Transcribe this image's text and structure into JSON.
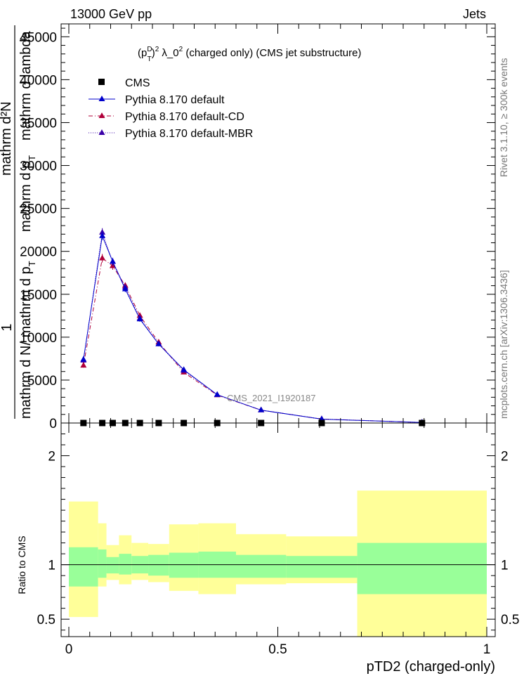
{
  "header": {
    "left": "13000 GeV pp",
    "right": "Jets"
  },
  "side_labels": {
    "rivet": "Rivet 3.1.10, ≥ 300k events",
    "mcplots": "mcplots.cern.ch [arXiv:1306.3436]"
  },
  "colors": {
    "cms": "#000000",
    "pythia_default": "#0000cc",
    "pythia_cd": "#b0003a",
    "pythia_mbr": "#3a00a8",
    "band_outer": "#ffff99",
    "band_inner": "#99ff99"
  },
  "chart_data": [
    {
      "type": "line",
      "title": "(p_T^D)^2 λ_0^2 (charged only) (CMS jet substructure)",
      "title_parts": {
        "base": "(p",
        "sup": "D",
        "sub": "T",
        "close": ")",
        "exp": "2",
        "lambda": " λ_0",
        "lambda_exp": "2",
        "rest": " (charged only) (CMS jet substructure)"
      },
      "ylabel": "1 / mathrm d N / mathrm d p_T mathrm d^2N / mathrm d p_T mathrm d lambda",
      "ylabel_lines": {
        "one": "1",
        "denominator": "mathrm d N/ mathrm d p",
        "denominator_sub": "T",
        "numerator": "mathrm d²N",
        "numerator2": "mathrm d p",
        "numerator2_sub": "T",
        "numerator3": "mathrm d lambda"
      },
      "xlim": [
        0,
        1
      ],
      "ylim": [
        0,
        46500
      ],
      "y_ticks": [
        0,
        5000,
        10000,
        15000,
        20000,
        25000,
        30000,
        35000,
        40000,
        45000
      ],
      "y_tick_labels": [
        "0",
        "5000",
        "10000",
        "15000",
        "20000",
        "25000",
        "30000",
        "35000",
        "40000",
        "45000"
      ],
      "watermark": "CMS_2021_I1920187",
      "bin_edges": [
        0.0,
        0.07,
        0.09,
        0.12,
        0.15,
        0.19,
        0.24,
        0.31,
        0.4,
        0.52,
        0.69,
        1.0
      ],
      "x": [
        0.035,
        0.08,
        0.105,
        0.135,
        0.17,
        0.215,
        0.275,
        0.355,
        0.46,
        0.605,
        0.845
      ],
      "legend": [
        "CMS",
        "Pythia 8.170 default",
        "Pythia 8.170 default-CD",
        "Pythia 8.170 default-MBR"
      ],
      "series": [
        {
          "name": "CMS",
          "style": "square",
          "values": [
            0,
            0,
            0,
            0,
            0,
            0,
            0,
            0,
            0,
            0,
            0
          ]
        },
        {
          "name": "Pythia 8.170 default",
          "style": "solid",
          "values": [
            7400,
            21800,
            18800,
            15600,
            12100,
            9200,
            6200,
            3300,
            1500,
            450,
            60
          ],
          "errors": [
            250,
            500,
            450,
            350,
            300,
            250,
            200,
            120,
            80,
            40,
            15
          ]
        },
        {
          "name": "Pythia 8.170 default-CD",
          "style": "dashdot",
          "values": [
            6700,
            19200,
            18300,
            16000,
            12500,
            9400,
            5900,
            3250,
            1500,
            460,
            60
          ],
          "errors": [
            250,
            500,
            450,
            350,
            300,
            250,
            200,
            120,
            80,
            40,
            15
          ]
        },
        {
          "name": "Pythia 8.170 default-MBR",
          "style": "dotted",
          "values": [
            7300,
            22200,
            18800,
            15800,
            12200,
            9200,
            6100,
            3300,
            1500,
            460,
            60
          ],
          "errors": [
            250,
            500,
            450,
            350,
            300,
            250,
            200,
            120,
            80,
            40,
            15
          ]
        }
      ]
    },
    {
      "type": "area",
      "title": "",
      "ylabel": "Ratio to CMS",
      "xlabel": "pTD2 (charged-only)",
      "xlim": [
        0,
        1
      ],
      "ylim": [
        0.34,
        2.3
      ],
      "x_ticks": [
        0,
        0.5,
        1
      ],
      "x_tick_labels": [
        "0",
        "0.5",
        "1"
      ],
      "y_ticks": [
        0.5,
        1,
        2
      ],
      "y_tick_labels": [
        "0.5",
        "1",
        "2"
      ],
      "bin_edges": [
        0.0,
        0.07,
        0.09,
        0.12,
        0.15,
        0.19,
        0.24,
        0.31,
        0.4,
        0.52,
        0.69,
        1.0
      ],
      "reference": 1,
      "inner_band": {
        "lo": [
          0.8,
          0.88,
          0.92,
          0.91,
          0.92,
          0.9,
          0.88,
          0.88,
          0.88,
          0.88,
          0.73
        ],
        "hi": [
          1.16,
          1.14,
          1.07,
          1.1,
          1.08,
          1.09,
          1.11,
          1.12,
          1.09,
          1.08,
          1.2
        ]
      },
      "outer_band": {
        "lo": [
          0.52,
          0.8,
          0.86,
          0.82,
          0.86,
          0.84,
          0.76,
          0.73,
          0.82,
          0.83,
          0.34
        ],
        "hi": [
          1.58,
          1.38,
          1.18,
          1.27,
          1.2,
          1.19,
          1.37,
          1.38,
          1.28,
          1.26,
          1.68
        ]
      }
    }
  ]
}
